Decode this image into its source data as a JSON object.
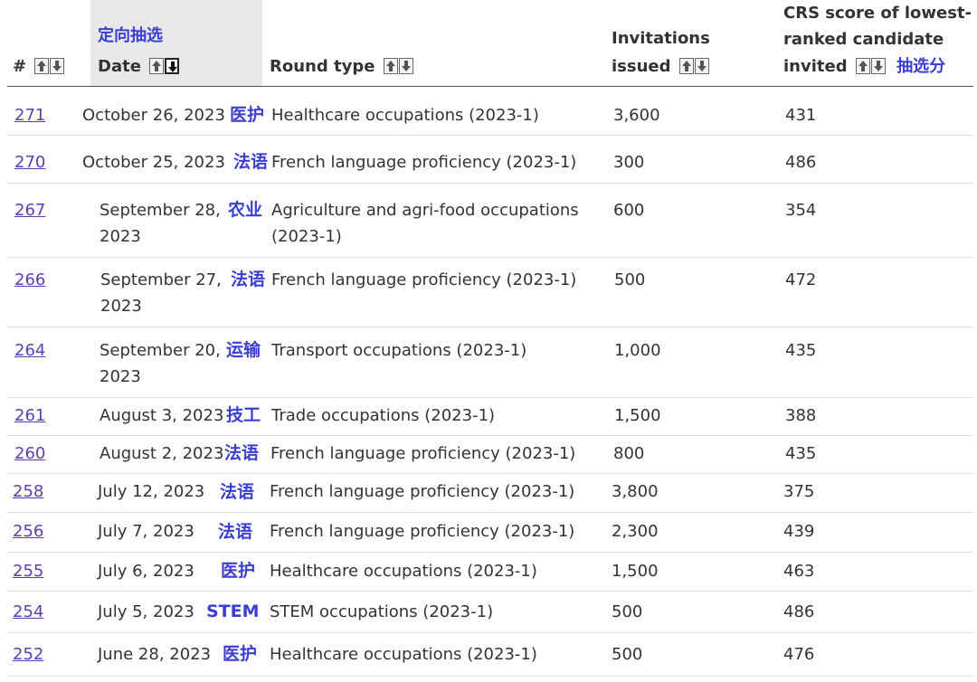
{
  "header": {
    "col_num": "#",
    "col_date_zh": "定向抽选",
    "col_date": "Date",
    "col_round": "Round type",
    "col_inv_line1": "Invitations",
    "col_inv_line2": "issued",
    "col_crs_line1": "CRS score of lowest-",
    "col_crs_line2": "ranked candidate",
    "col_crs_line3": "invited",
    "col_crs_zh": "抽选分"
  },
  "rows": [
    {
      "num": "271",
      "date": "October 26, 2023",
      "tag": "医护",
      "round": "Healthcare occupations (2023-1)",
      "inv": "3,600",
      "crs": "431"
    },
    {
      "num": "270",
      "date": "October 25, 2023",
      "tag": "法语",
      "round": "French language proficiency (2023-1)",
      "inv": "300",
      "crs": "486"
    },
    {
      "num": "267",
      "date": "September 28, 2023",
      "tag": "农业",
      "round": "Agriculture and agri-food occupations (2023-1)",
      "inv": "600",
      "crs": "354"
    },
    {
      "num": "266",
      "date": "September 27, 2023",
      "tag": "法语",
      "round": "French language proficiency (2023-1)",
      "inv": "500",
      "crs": "472"
    },
    {
      "num": "264",
      "date": "September 20, 2023",
      "tag": "运输",
      "round": "Transport occupations (2023-1)",
      "inv": "1,000",
      "crs": "435"
    },
    {
      "num": "261",
      "date": "August 3, 2023",
      "tag": "技工",
      "round": "Trade occupations (2023-1)",
      "inv": "1,500",
      "crs": "388"
    },
    {
      "num": "260",
      "date": "August 2, 2023",
      "tag": "法语",
      "round": "French language proficiency (2023-1)",
      "inv": "800",
      "crs": "435"
    },
    {
      "num": "258",
      "date": "July 12, 2023",
      "tag": "法语",
      "round": "French language proficiency (2023-1)",
      "inv": "3,800",
      "crs": "375"
    },
    {
      "num": "256",
      "date": "July 7, 2023",
      "tag": "法语",
      "round": "French language proficiency (2023-1)",
      "inv": "2,300",
      "crs": "439"
    },
    {
      "num": "255",
      "date": "July 6, 2023",
      "tag": "医护",
      "round": "Healthcare occupations (2023-1)",
      "inv": "1,500",
      "crs": "463"
    },
    {
      "num": "254",
      "date": "July 5, 2023",
      "tag": "STEM",
      "round": "STEM occupations (2023-1)",
      "inv": "500",
      "crs": "486"
    },
    {
      "num": "252",
      "date": "June 28, 2023",
      "tag": "医护",
      "round": "Healthcare occupations (2023-1)",
      "inv": "500",
      "crs": "476"
    }
  ]
}
